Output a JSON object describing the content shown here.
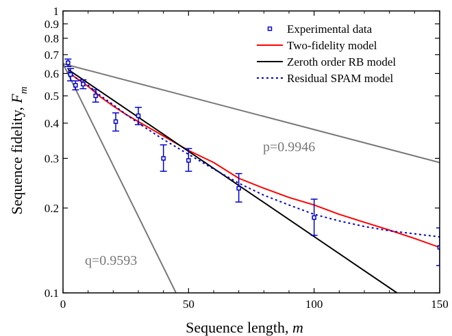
{
  "chart_data": {
    "type": "scatter",
    "title": "",
    "xlabel": "Sequence length, ",
    "xlabel_var": "m",
    "ylabel": "Sequence fidelity, ",
    "ylabel_var": "F",
    "ylabel_sub": "m",
    "xlim": [
      0,
      150
    ],
    "ylim": [
      0.1,
      1
    ],
    "y_scale": "log",
    "x_ticks": [
      0,
      50,
      100,
      150
    ],
    "x_tick_labels": [
      "0",
      "50",
      "100",
      "150"
    ],
    "y_ticks": [
      0.1,
      0.2,
      0.3,
      0.4,
      0.5,
      0.6,
      0.7,
      0.8,
      0.9,
      1
    ],
    "y_tick_labels": [
      "0.1",
      "0.2",
      "0.3",
      "0.4",
      "0.5",
      "0.6",
      "0.7",
      "0.8",
      "0.9",
      "1"
    ],
    "grid": false,
    "legend_position": "top-right",
    "experimental": {
      "name": "Experimental data",
      "color": "#0000cc",
      "points": [
        {
          "x": 2,
          "y": 0.655,
          "lo": 0.635,
          "hi": 0.675
        },
        {
          "x": 3,
          "y": 0.595,
          "lo": 0.565,
          "hi": 0.625
        },
        {
          "x": 5,
          "y": 0.545,
          "lo": 0.525,
          "hi": 0.565
        },
        {
          "x": 8,
          "y": 0.55,
          "lo": 0.53,
          "hi": 0.57
        },
        {
          "x": 13,
          "y": 0.5,
          "lo": 0.475,
          "hi": 0.525
        },
        {
          "x": 21,
          "y": 0.405,
          "lo": 0.375,
          "hi": 0.435
        },
        {
          "x": 30,
          "y": 0.425,
          "lo": 0.395,
          "hi": 0.455
        },
        {
          "x": 40,
          "y": 0.3,
          "lo": 0.27,
          "hi": 0.335
        },
        {
          "x": 50,
          "y": 0.295,
          "lo": 0.27,
          "hi": 0.325
        },
        {
          "x": 70,
          "y": 0.235,
          "lo": 0.21,
          "hi": 0.265
        },
        {
          "x": 100,
          "y": 0.185,
          "lo": 0.16,
          "hi": 0.215
        },
        {
          "x": 150,
          "y": 0.145,
          "lo": 0.125,
          "hi": 0.17
        }
      ]
    },
    "series": [
      {
        "name": "Two-fidelity model",
        "color": "#ff0000",
        "style": "solid",
        "x": [
          2,
          5,
          10,
          15,
          20,
          25,
          30,
          40,
          50,
          60,
          70,
          80,
          90,
          100,
          110,
          120,
          130,
          140,
          150
        ],
        "y": [
          0.61,
          0.58,
          0.54,
          0.495,
          0.46,
          0.43,
          0.405,
          0.36,
          0.32,
          0.29,
          0.255,
          0.235,
          0.218,
          0.205,
          0.19,
          0.178,
          0.167,
          0.156,
          0.145
        ]
      },
      {
        "name": "Zeroth order RB model",
        "color": "#000000",
        "style": "solid",
        "x": [
          2,
          133
        ],
        "y": [
          0.62,
          0.1
        ]
      },
      {
        "name": "Residual SPAM model",
        "color": "#0000cc",
        "style": "dotted",
        "x": [
          2,
          5,
          10,
          15,
          20,
          25,
          30,
          40,
          50,
          60,
          70,
          80,
          90,
          100,
          110,
          120,
          130,
          140,
          150
        ],
        "y": [
          0.61,
          0.58,
          0.545,
          0.5,
          0.465,
          0.43,
          0.4,
          0.35,
          0.31,
          0.275,
          0.245,
          0.222,
          0.205,
          0.19,
          0.18,
          0.172,
          0.166,
          0.162,
          0.158
        ]
      }
    ],
    "reference_lines": [
      {
        "label": "p=0.9946",
        "color": "#777777",
        "x": [
          0,
          150
        ],
        "y": [
          0.65,
          0.29
        ]
      },
      {
        "label": "q=0.9593",
        "color": "#777777",
        "x": [
          0,
          45
        ],
        "y": [
          0.65,
          0.1
        ]
      }
    ]
  }
}
